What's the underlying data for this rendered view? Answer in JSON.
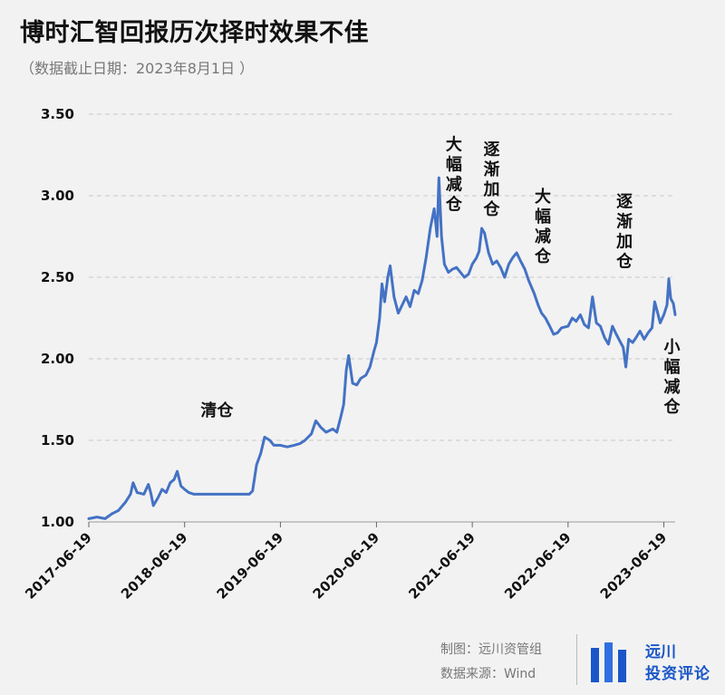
{
  "title": "博时汇智回报历次择时效果不佳",
  "subtitle": "（数据截止日期：2023年8月1日 ）",
  "chart_data": {
    "type": "line",
    "ylim": [
      1.0,
      3.5
    ],
    "yticks": [
      "1.00",
      "1.50",
      "2.00",
      "2.50",
      "3.00",
      "3.50"
    ],
    "xlim": [
      "2017-06-19",
      "2023-08-01"
    ],
    "xticks": [
      "2017-06-19",
      "2018-06-19",
      "2019-06-19",
      "2020-06-19",
      "2021-06-19",
      "2022-06-19",
      "2023-06-19"
    ],
    "grid": "horizontal dashed",
    "series": [
      {
        "color": "#4472c4",
        "points": [
          [
            "2017-06-19",
            1.02
          ],
          [
            "2017-07-20",
            1.03
          ],
          [
            "2017-08-20",
            1.02
          ],
          [
            "2017-09-15",
            1.05
          ],
          [
            "2017-10-10",
            1.07
          ],
          [
            "2017-11-05",
            1.12
          ],
          [
            "2017-11-25",
            1.17
          ],
          [
            "2017-12-05",
            1.24
          ],
          [
            "2017-12-20",
            1.18
          ],
          [
            "2018-01-15",
            1.17
          ],
          [
            "2018-02-01",
            1.23
          ],
          [
            "2018-02-10",
            1.18
          ],
          [
            "2018-02-20",
            1.1
          ],
          [
            "2018-03-10",
            1.15
          ],
          [
            "2018-03-25",
            1.2
          ],
          [
            "2018-04-10",
            1.18
          ],
          [
            "2018-04-25",
            1.24
          ],
          [
            "2018-05-10",
            1.26
          ],
          [
            "2018-05-22",
            1.31
          ],
          [
            "2018-06-05",
            1.22
          ],
          [
            "2018-06-19",
            1.2
          ],
          [
            "2018-07-05",
            1.18
          ],
          [
            "2018-07-25",
            1.17
          ],
          [
            "2018-09-01",
            1.17
          ],
          [
            "2018-11-01",
            1.17
          ],
          [
            "2019-01-10",
            1.17
          ],
          [
            "2019-02-20",
            1.17
          ],
          [
            "2019-03-05",
            1.19
          ],
          [
            "2019-03-20",
            1.35
          ],
          [
            "2019-04-05",
            1.42
          ],
          [
            "2019-04-20",
            1.52
          ],
          [
            "2019-05-10",
            1.5
          ],
          [
            "2019-05-25",
            1.47
          ],
          [
            "2019-06-19",
            1.47
          ],
          [
            "2019-07-15",
            1.46
          ],
          [
            "2019-08-10",
            1.47
          ],
          [
            "2019-09-01",
            1.48
          ],
          [
            "2019-09-20",
            1.5
          ],
          [
            "2019-10-15",
            1.54
          ],
          [
            "2019-11-01",
            1.62
          ],
          [
            "2019-11-20",
            1.58
          ],
          [
            "2019-12-10",
            1.55
          ],
          [
            "2020-01-05",
            1.57
          ],
          [
            "2020-01-20",
            1.55
          ],
          [
            "2020-02-05",
            1.65
          ],
          [
            "2020-02-15",
            1.72
          ],
          [
            "2020-02-25",
            1.93
          ],
          [
            "2020-03-05",
            2.02
          ],
          [
            "2020-03-20",
            1.85
          ],
          [
            "2020-04-05",
            1.84
          ],
          [
            "2020-04-20",
            1.88
          ],
          [
            "2020-05-10",
            1.9
          ],
          [
            "2020-05-25",
            1.95
          ],
          [
            "2020-06-10",
            2.05
          ],
          [
            "2020-06-19",
            2.1
          ],
          [
            "2020-07-01",
            2.25
          ],
          [
            "2020-07-10",
            2.46
          ],
          [
            "2020-07-20",
            2.35
          ],
          [
            "2020-08-01",
            2.5
          ],
          [
            "2020-08-10",
            2.57
          ],
          [
            "2020-08-25",
            2.38
          ],
          [
            "2020-09-10",
            2.28
          ],
          [
            "2020-09-25",
            2.33
          ],
          [
            "2020-10-10",
            2.38
          ],
          [
            "2020-10-25",
            2.32
          ],
          [
            "2020-11-10",
            2.42
          ],
          [
            "2020-11-25",
            2.4
          ],
          [
            "2020-12-10",
            2.48
          ],
          [
            "2020-12-25",
            2.62
          ],
          [
            "2021-01-10",
            2.8
          ],
          [
            "2021-01-25",
            2.92
          ],
          [
            "2021-02-05",
            2.75
          ],
          [
            "2021-02-12",
            3.11
          ],
          [
            "2021-02-22",
            2.75
          ],
          [
            "2021-03-05",
            2.58
          ],
          [
            "2021-03-20",
            2.53
          ],
          [
            "2021-04-05",
            2.55
          ],
          [
            "2021-04-20",
            2.56
          ],
          [
            "2021-05-05",
            2.53
          ],
          [
            "2021-05-20",
            2.5
          ],
          [
            "2021-06-05",
            2.52
          ],
          [
            "2021-06-19",
            2.58
          ],
          [
            "2021-07-05",
            2.62
          ],
          [
            "2021-07-15",
            2.66
          ],
          [
            "2021-07-25",
            2.8
          ],
          [
            "2021-08-05",
            2.77
          ],
          [
            "2021-08-20",
            2.65
          ],
          [
            "2021-09-05",
            2.58
          ],
          [
            "2021-09-20",
            2.6
          ],
          [
            "2021-10-05",
            2.56
          ],
          [
            "2021-10-20",
            2.5
          ],
          [
            "2021-11-05",
            2.58
          ],
          [
            "2021-11-20",
            2.62
          ],
          [
            "2021-12-05",
            2.65
          ],
          [
            "2021-12-20",
            2.6
          ],
          [
            "2022-01-05",
            2.55
          ],
          [
            "2022-01-20",
            2.48
          ],
          [
            "2022-02-10",
            2.4
          ],
          [
            "2022-02-25",
            2.33
          ],
          [
            "2022-03-10",
            2.28
          ],
          [
            "2022-03-25",
            2.25
          ],
          [
            "2022-04-10",
            2.2
          ],
          [
            "2022-04-25",
            2.15
          ],
          [
            "2022-05-10",
            2.16
          ],
          [
            "2022-05-25",
            2.19
          ],
          [
            "2022-06-19",
            2.2
          ],
          [
            "2022-07-05",
            2.25
          ],
          [
            "2022-07-20",
            2.23
          ],
          [
            "2022-08-05",
            2.27
          ],
          [
            "2022-08-20",
            2.21
          ],
          [
            "2022-09-05",
            2.19
          ],
          [
            "2022-09-20",
            2.38
          ],
          [
            "2022-10-05",
            2.22
          ],
          [
            "2022-10-20",
            2.2
          ],
          [
            "2022-11-05",
            2.13
          ],
          [
            "2022-11-20",
            2.09
          ],
          [
            "2022-12-05",
            2.2
          ],
          [
            "2022-12-20",
            2.15
          ],
          [
            "2023-01-05",
            2.1
          ],
          [
            "2023-01-15",
            2.07
          ],
          [
            "2023-01-25",
            1.95
          ],
          [
            "2023-02-05",
            2.12
          ],
          [
            "2023-02-20",
            2.1
          ],
          [
            "2023-03-05",
            2.13
          ],
          [
            "2023-03-20",
            2.17
          ],
          [
            "2023-04-05",
            2.12
          ],
          [
            "2023-04-20",
            2.16
          ],
          [
            "2023-05-05",
            2.19
          ],
          [
            "2023-05-15",
            2.35
          ],
          [
            "2023-05-25",
            2.29
          ],
          [
            "2023-06-05",
            2.22
          ],
          [
            "2023-06-19",
            2.27
          ],
          [
            "2023-07-01",
            2.33
          ],
          [
            "2023-07-08",
            2.49
          ],
          [
            "2023-07-15",
            2.37
          ],
          [
            "2023-07-25",
            2.34
          ],
          [
            "2023-08-01",
            2.27
          ]
        ]
      }
    ],
    "annotations": [
      {
        "text": "清仓",
        "x": "2018-10-20",
        "y": 1.65
      },
      {
        "text": "大幅减仓",
        "x": "2021-04-10",
        "y": 3.28
      },
      {
        "text": "逐渐加仓",
        "x": "2021-09-01",
        "y": 3.25
      },
      {
        "text": "大幅减仓",
        "x": "2022-03-15",
        "y": 2.96
      },
      {
        "text": "逐渐加仓",
        "x": "2023-01-20",
        "y": 2.93
      },
      {
        "text": "小幅减仓",
        "x": "2023-07-20",
        "y": 2.04
      }
    ]
  },
  "footer": {
    "credit": "制图：远川资管组",
    "source": "数据来源：Wind"
  },
  "brand": {
    "line1": "远川",
    "line2": "投资评论",
    "color": "#1a56c8"
  }
}
